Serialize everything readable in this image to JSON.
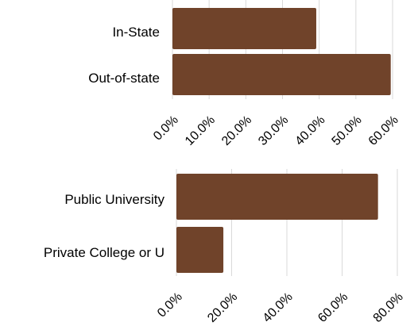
{
  "colors": {
    "bar": "#70432a",
    "grid": "#d9d9d9"
  },
  "chart_data": [
    {
      "type": "bar",
      "orientation": "horizontal",
      "categories": [
        "In-State",
        "Out-of-state"
      ],
      "values": [
        0.392,
        0.595
      ],
      "xlim": [
        0,
        0.6
      ],
      "xticks": [
        "0.0%",
        "10.0%",
        "20.0%",
        "30.0%",
        "40.0%",
        "50.0%",
        "60.0%"
      ],
      "grid": true
    },
    {
      "type": "bar",
      "orientation": "horizontal",
      "categories": [
        "Public University",
        "Private College or U"
      ],
      "values": [
        0.73,
        0.17
      ],
      "xlim": [
        0,
        0.8
      ],
      "xticks": [
        "0.0%",
        "20.0%",
        "40.0%",
        "60.0%",
        "80.0%"
      ],
      "grid": true
    }
  ]
}
